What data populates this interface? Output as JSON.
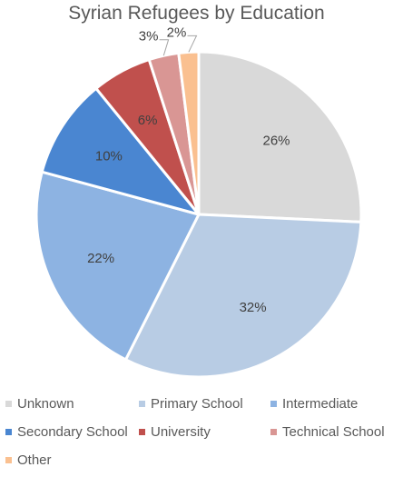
{
  "chart_data": {
    "type": "pie",
    "title": "Syrian Refugees by Education",
    "categories": [
      "Unknown",
      "Primary School",
      "Intermediate",
      "Secondary School",
      "University",
      "Technical School",
      "Other"
    ],
    "values": [
      26,
      32,
      22,
      10,
      6,
      3,
      2
    ],
    "labels": [
      "26%",
      "32%",
      "22%",
      "10%",
      "6%",
      "3%",
      "2%"
    ],
    "colors": [
      "#d9d9d9",
      "#b8cce4",
      "#8db3e2",
      "#4a86d1",
      "#c0504d",
      "#d99694",
      "#fac090"
    ],
    "legend_position": "bottom"
  }
}
